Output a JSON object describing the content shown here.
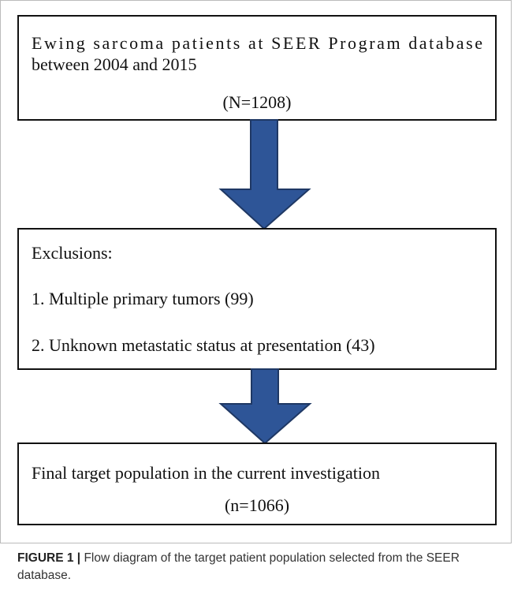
{
  "boxes": [
    {
      "lines": [
        "Ewing sarcoma patients at SEER Program database",
        "between 2004 and 2015"
      ],
      "count": "(N=1208)"
    },
    {
      "title": "Exclusions:",
      "items": [
        "1. Multiple primary tumors (99)",
        "2. Unknown metastatic status at presentation (43)"
      ]
    },
    {
      "lines": [
        "Final target population in the current investigation"
      ],
      "count": "(n=1066)"
    }
  ],
  "figure": {
    "label": "FIGURE 1 |",
    "caption": "Flow diagram of the target patient population selected from the SEER database."
  }
}
